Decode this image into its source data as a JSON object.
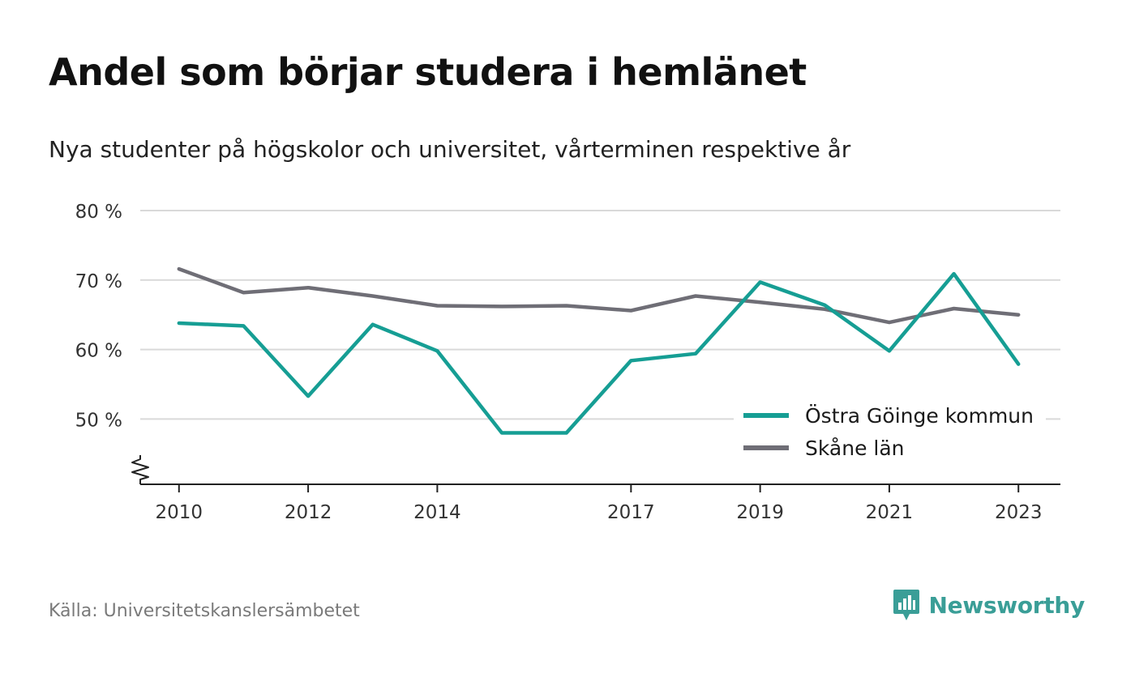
{
  "chart_data": {
    "type": "line",
    "title": "Andel som börjar studera i hemlänet",
    "subtitle": "Nya studenter på högskolor och universitet, vårterminen respektive år",
    "x": [
      2010,
      2011,
      2012,
      2013,
      2014,
      2015,
      2016,
      2017,
      2018,
      2019,
      2020,
      2021,
      2022,
      2023
    ],
    "x_tick_labels": [
      "2010",
      "2012",
      "2014",
      "2017",
      "2019",
      "2021",
      "2023"
    ],
    "x_tick_values": [
      2010,
      2012,
      2014,
      2017,
      2019,
      2021,
      2023
    ],
    "y_tick_labels": [
      "80 %",
      "70 %",
      "60 %",
      "50 %"
    ],
    "y_tick_values": [
      80,
      70,
      60,
      50
    ],
    "ylim": [
      40.6,
      80
    ],
    "xlim": [
      2009.4,
      2023.65
    ],
    "grid": true,
    "legend_position": "bottom-right",
    "series": [
      {
        "name": "Östra Göinge kommun",
        "color": "#169e94",
        "values": [
          63.8,
          63.4,
          53.3,
          63.6,
          59.8,
          48.0,
          48.0,
          58.4,
          59.4,
          69.7,
          66.4,
          59.8,
          70.9,
          57.9
        ]
      },
      {
        "name": "Skåne län",
        "color": "#6f6e76",
        "values": [
          71.6,
          68.2,
          68.9,
          67.7,
          66.3,
          66.2,
          66.3,
          65.6,
          67.7,
          66.8,
          65.8,
          63.9,
          65.9,
          65.0
        ]
      }
    ]
  },
  "header": {
    "title": "Andel som börjar studera i hemlänet",
    "subtitle": "Nya studenter på högskolor och universitet, vårterminen respektive år"
  },
  "footer": {
    "source": "Källa: Universitetskanslersämbetet",
    "brand": "Newsworthy",
    "brand_color": "#3a9e97"
  }
}
